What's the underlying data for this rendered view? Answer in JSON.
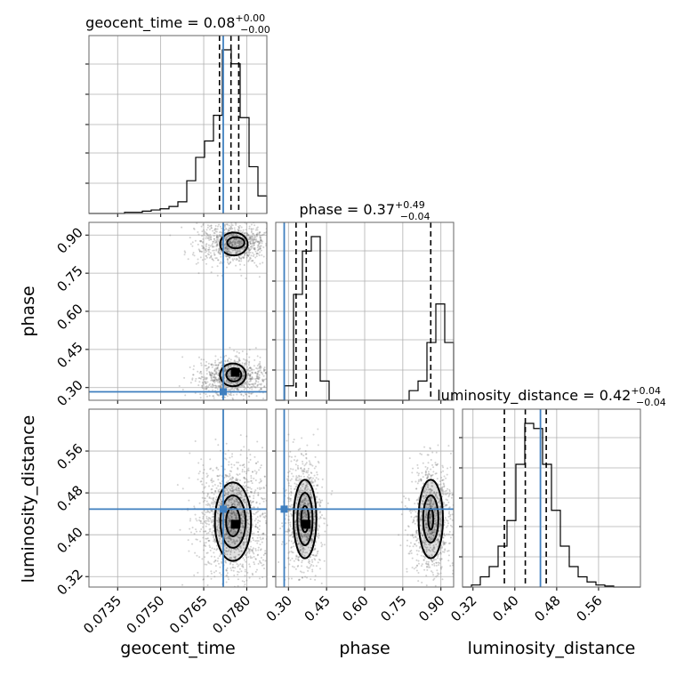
{
  "chart_data": {
    "type": "corner",
    "parameters": [
      "geocent_time",
      "phase",
      "luminosity_distance"
    ],
    "titles": {
      "geocent_time": {
        "name": "geocent_time",
        "median": "0.08",
        "plus": "+0.00",
        "minus": "−0.00"
      },
      "phase": {
        "name": "phase",
        "median": "0.37",
        "plus": "+0.49",
        "minus": "−0.04"
      },
      "luminosity_distance": {
        "name": "luminosity_distance",
        "median": "0.42",
        "plus": "+0.04",
        "minus": "−0.04"
      }
    },
    "ranges": {
      "geocent_time": [
        0.0725,
        0.0787
      ],
      "phase": [
        0.25,
        0.95
      ],
      "luminosity_distance": [
        0.3,
        0.64
      ]
    },
    "ticks": {
      "geocent_time": [
        "0.0735",
        "0.0750",
        "0.0765",
        "0.0780"
      ],
      "phase": [
        "0.30",
        "0.45",
        "0.60",
        "0.75",
        "0.90"
      ],
      "luminosity_distance": [
        "0.32",
        "0.40",
        "0.48",
        "0.56"
      ]
    },
    "truths": {
      "geocent_time": 0.07718,
      "phase": 0.2833,
      "luminosity_distance": 0.4489
    },
    "quantiles": {
      "geocent_time": [
        0.07705,
        0.07745,
        0.07772
      ],
      "phase": [
        0.33,
        0.37,
        0.86
      ],
      "luminosity_distance": [
        0.38,
        0.42,
        0.46
      ]
    },
    "histograms": {
      "geocent_time": {
        "edges_start": 0.0725,
        "edges_step": 0.00031,
        "counts": [
          0,
          0,
          0,
          0,
          1,
          1,
          2,
          3,
          4,
          6,
          10,
          28,
          48,
          62,
          84,
          140,
          128,
          82,
          40,
          15
        ]
      },
      "phase": {
        "edges_start": 0.25,
        "edges_step": 0.035,
        "counts": [
          0,
          15,
          110,
          155,
          170,
          20,
          0,
          0,
          0,
          0,
          0,
          0,
          0,
          0,
          0,
          10,
          20,
          60,
          100,
          60
        ]
      },
      "luminosity_distance": {
        "edges_start": 0.3,
        "edges_step": 0.017,
        "counts": [
          0,
          2,
          10,
          20,
          40,
          65,
          120,
          160,
          155,
          120,
          75,
          40,
          20,
          10,
          5,
          2,
          1,
          0,
          0,
          0
        ]
      }
    },
    "grid": true,
    "colors": {
      "truth": "#3f7fbf",
      "contour": "#000000",
      "samples": "#808080"
    }
  }
}
